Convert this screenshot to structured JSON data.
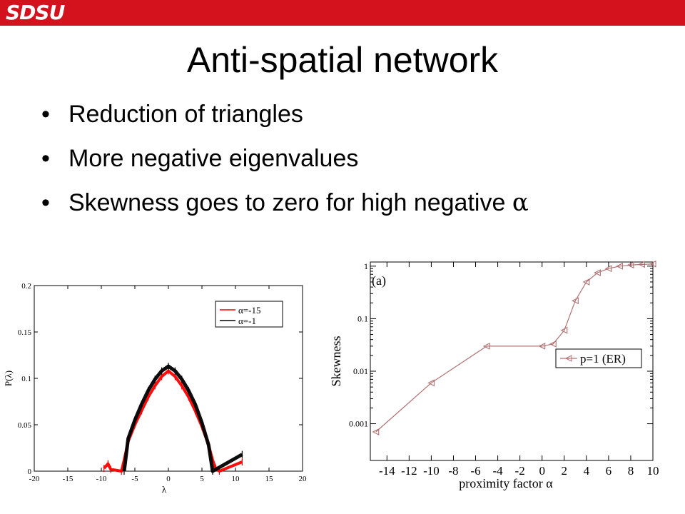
{
  "header": {
    "logo_text": "SDSU",
    "brand_color": "#d4121e"
  },
  "slide": {
    "title": "Anti-spatial network",
    "bullets": [
      {
        "text": "Reduction of triangles",
        "symbol": ""
      },
      {
        "text": "More negative eigenvalues",
        "symbol": ""
      },
      {
        "text": "Skewness goes to zero for high negative ",
        "symbol": "α"
      }
    ]
  },
  "chart_data": [
    {
      "type": "line",
      "title": "",
      "xlabel": "λ",
      "ylabel": "P(λ)",
      "xlim": [
        -20,
        20
      ],
      "ylim": [
        0,
        0.2
      ],
      "x_ticks": [
        -20,
        -15,
        -10,
        -5,
        0,
        5,
        10,
        15,
        20
      ],
      "x_tick_labels": [
        "-20",
        "-15",
        "-10",
        "-5",
        "0",
        "5",
        "10",
        "15",
        "20"
      ],
      "y_ticks": [
        0,
        0.05,
        0.1,
        0.15,
        0.2
      ],
      "y_tick_labels": [
        "0",
        "0.05",
        "0.1",
        "0.15",
        "0.2"
      ],
      "legend_position": "top-right",
      "series": [
        {
          "name": "α=-15",
          "color": "#ff0000",
          "x": [
            -9.6,
            -9.0,
            -8.6,
            -7.0,
            -6.6,
            -6.0,
            -5.0,
            -4.0,
            -3.0,
            -2.0,
            -1.0,
            0.0,
            1.0,
            2.0,
            3.0,
            4.0,
            5.0,
            6.0,
            6.6,
            7.0,
            7.6,
            11.0
          ],
          "y": [
            0.003,
            0.008,
            0.002,
            0.0,
            0.012,
            0.032,
            0.05,
            0.065,
            0.08,
            0.092,
            0.102,
            0.108,
            0.102,
            0.092,
            0.08,
            0.065,
            0.048,
            0.028,
            0.012,
            0.004,
            0.0,
            0.01
          ]
        },
        {
          "name": "α=-1",
          "color": "#000000",
          "x": [
            -6.6,
            -6.0,
            -5.0,
            -4.0,
            -3.0,
            -2.0,
            -1.0,
            0.0,
            1.0,
            2.0,
            3.0,
            4.0,
            5.0,
            6.0,
            6.6,
            11.0
          ],
          "y": [
            0.0,
            0.035,
            0.055,
            0.072,
            0.087,
            0.099,
            0.108,
            0.113,
            0.108,
            0.099,
            0.087,
            0.072,
            0.052,
            0.028,
            0.0,
            0.018
          ]
        }
      ]
    },
    {
      "type": "line",
      "title": "",
      "annotation": "(a)",
      "xlabel": "proximity factor α",
      "ylabel": "Skewness",
      "y_scale": "log",
      "xlim": [
        -15.5,
        10
      ],
      "ylim": [
        0.0002,
        1.2
      ],
      "x_ticks": [
        -14,
        -12,
        -10,
        -8,
        -6,
        -4,
        -2,
        0,
        2,
        4,
        6,
        8,
        10
      ],
      "x_tick_labels": [
        "-14",
        "-12",
        "-10",
        "-8",
        "-6",
        "-4",
        "-2",
        "0",
        "2",
        "4",
        "6",
        "8",
        "10"
      ],
      "y_ticks": [
        0.001,
        0.01,
        0.1,
        1
      ],
      "y_tick_labels": [
        "0.001",
        "0.01",
        "0.1",
        "1"
      ],
      "legend_position": "right",
      "series": [
        {
          "name": "p=1 (ER)",
          "color": "#b07070",
          "x": [
            -15,
            -10,
            -5,
            0,
            1,
            2,
            3,
            4,
            5,
            6,
            7,
            8,
            9,
            10
          ],
          "y": [
            0.0007,
            0.006,
            0.03,
            0.03,
            0.033,
            0.06,
            0.22,
            0.5,
            0.75,
            0.9,
            1.0,
            1.05,
            1.08,
            1.1
          ]
        }
      ]
    }
  ]
}
